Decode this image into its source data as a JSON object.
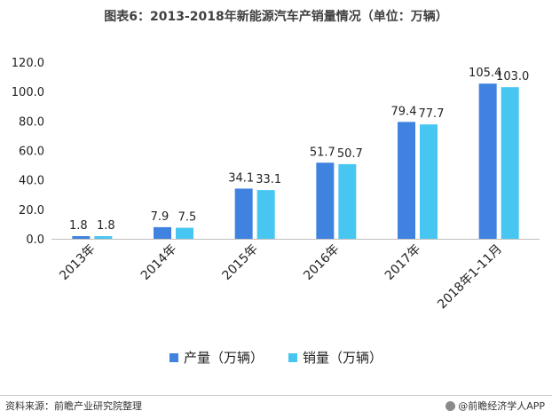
{
  "title": "图表6：2013-2018年新能源汽车产销量情况（单位：万辆）",
  "chart_data": {
    "type": "bar",
    "categories": [
      "2013年",
      "2014年",
      "2015年",
      "2016年",
      "2017年",
      "2018年1-11月"
    ],
    "series": [
      {
        "name": "产量（万辆）",
        "color": "#3f82e0",
        "values": [
          1.8,
          7.9,
          34.1,
          51.7,
          79.4,
          105.4
        ]
      },
      {
        "name": "销量（万辆）",
        "color": "#48c6f2",
        "values": [
          1.8,
          7.5,
          33.1,
          50.7,
          77.7,
          103.0
        ]
      }
    ],
    "ylim": [
      0,
      120
    ],
    "yticks": [
      "0.0",
      "20.0",
      "40.0",
      "60.0",
      "80.0",
      "100.0",
      "120.0"
    ],
    "xlabel": "",
    "ylabel": ""
  },
  "footer": {
    "source": "资料来源：前瞻产业研究院整理",
    "brand": "@前瞻经济学人APP"
  }
}
